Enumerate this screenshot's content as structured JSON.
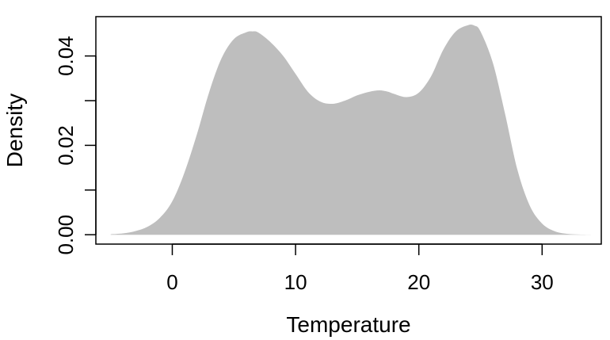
{
  "chart_data": {
    "type": "area",
    "title": "",
    "xlabel": "Temperature",
    "ylabel": "Density",
    "xlim": [
      -6.2,
      34.8
    ],
    "ylim": [
      -0.0021,
      0.0488
    ],
    "x_ticks": [
      0,
      10,
      20,
      30
    ],
    "x_tick_labels": [
      "0",
      "10",
      "20",
      "30"
    ],
    "y_ticks": [
      0.0,
      0.01,
      0.02,
      0.03,
      0.04
    ],
    "y_tick_labels": [
      "0.00",
      "",
      "0.02",
      "",
      "0.04"
    ],
    "fill_color": "#bebebe",
    "grid": false,
    "series": [
      {
        "x": [
          -5,
          -4,
          -3,
          -2,
          -1,
          0,
          1,
          2,
          3,
          4,
          5,
          6,
          6.5,
          7,
          8,
          9,
          10,
          11,
          12,
          13,
          14,
          15,
          16,
          16.8,
          17.5,
          18,
          19,
          20,
          21,
          22,
          23,
          24,
          24.5,
          25,
          26,
          27,
          28,
          29,
          30,
          31,
          32,
          33,
          34
        ],
        "y": [
          0.0001,
          0.0003,
          0.0008,
          0.0018,
          0.0038,
          0.0075,
          0.014,
          0.0225,
          0.032,
          0.0395,
          0.0438,
          0.0453,
          0.0455,
          0.0452,
          0.043,
          0.04,
          0.036,
          0.032,
          0.0298,
          0.0293,
          0.03,
          0.0312,
          0.032,
          0.0323,
          0.032,
          0.0315,
          0.0308,
          0.0318,
          0.0355,
          0.0415,
          0.0455,
          0.0469,
          0.0468,
          0.0455,
          0.0385,
          0.027,
          0.0145,
          0.0065,
          0.0025,
          0.0008,
          0.0002,
          5e-05,
          0.0
        ]
      }
    ]
  }
}
